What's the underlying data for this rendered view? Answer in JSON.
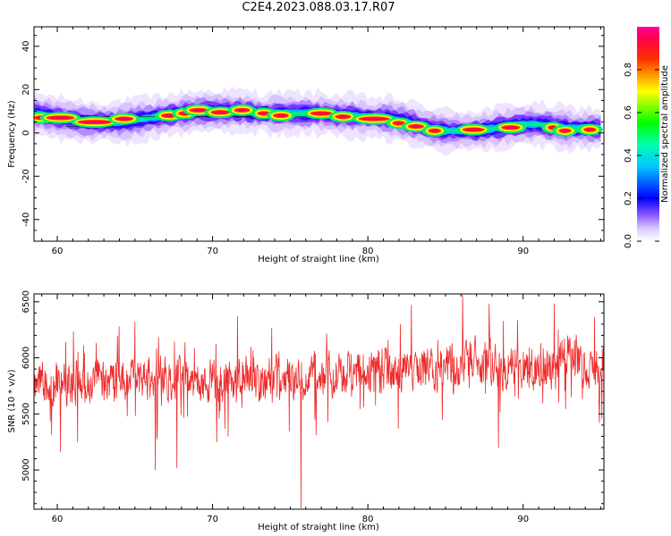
{
  "page": {
    "title": "C2E4.2023.088.03.17.R07"
  },
  "chart_data": [
    {
      "type": "heatmap",
      "title": "C2E4.2023.088.03.17.R07",
      "xlabel": "Height of straight line (km)",
      "ylabel": "Frequency (Hz)",
      "xlim": [
        58.5,
        95.2
      ],
      "ylim": [
        -50,
        49
      ],
      "x_ticks": [
        60,
        70,
        80,
        90
      ],
      "y_ticks": [
        -40,
        -20,
        0,
        20,
        40
      ],
      "grid": false,
      "colorbar": {
        "label": "Normalized spectral amplitude",
        "range": [
          0.0,
          1.0
        ],
        "ticks": [
          0.0,
          0.2,
          0.4,
          0.6,
          0.8
        ],
        "colormap": [
          "#ff00ff",
          "#ff0000",
          "#ffff00",
          "#00ff00",
          "#00ffff",
          "#0000ff",
          "#ffffff"
        ]
      },
      "ridge": {
        "x": [
          58.5,
          60,
          61,
          62,
          63,
          64,
          65,
          66,
          67,
          68,
          69,
          70,
          71,
          72,
          73,
          74,
          75,
          76,
          77,
          78,
          79,
          80,
          81,
          82,
          83,
          84,
          85,
          86,
          87,
          88,
          89,
          90,
          91,
          92,
          93,
          94,
          95
        ],
        "y": [
          9,
          7,
          6,
          5,
          5,
          5,
          6,
          7,
          8,
          9,
          10,
          10,
          10,
          10,
          9,
          9,
          9,
          9,
          9,
          8,
          8,
          7,
          7,
          6,
          4,
          2,
          1,
          1,
          1,
          2,
          3,
          4,
          4,
          3,
          2,
          2,
          2
        ]
      },
      "peaks": [
        {
          "x": 59.0,
          "y": 7,
          "w": 0.4
        },
        {
          "x": 60.2,
          "y": 7,
          "w": 0.8
        },
        {
          "x": 62.4,
          "y": 5,
          "w": 1.0
        },
        {
          "x": 64.3,
          "y": 6.5,
          "w": 0.5
        },
        {
          "x": 67.2,
          "y": 8,
          "w": 0.4
        },
        {
          "x": 68.2,
          "y": 9,
          "w": 0.3
        },
        {
          "x": 69.1,
          "y": 10.5,
          "w": 0.5
        },
        {
          "x": 70.5,
          "y": 9.5,
          "w": 0.5
        },
        {
          "x": 71.9,
          "y": 10.5,
          "w": 0.4
        },
        {
          "x": 73.3,
          "y": 9,
          "w": 0.3
        },
        {
          "x": 74.4,
          "y": 8,
          "w": 0.4
        },
        {
          "x": 77.0,
          "y": 9,
          "w": 0.6
        },
        {
          "x": 78.4,
          "y": 7.5,
          "w": 0.4
        },
        {
          "x": 80.4,
          "y": 6.5,
          "w": 0.9
        },
        {
          "x": 82.0,
          "y": 4.5,
          "w": 0.3
        },
        {
          "x": 83.1,
          "y": 3,
          "w": 0.4
        },
        {
          "x": 84.3,
          "y": 1,
          "w": 0.3
        },
        {
          "x": 86.8,
          "y": 1.5,
          "w": 0.6
        },
        {
          "x": 89.2,
          "y": 2.5,
          "w": 0.5
        },
        {
          "x": 91.9,
          "y": 2.5,
          "w": 0.2
        },
        {
          "x": 92.7,
          "y": 1,
          "w": 0.3
        },
        {
          "x": 94.3,
          "y": 1.5,
          "w": 0.3
        }
      ]
    },
    {
      "type": "line",
      "xlabel": "Height of straight line (km)",
      "ylabel": "SNR (10 * v/v)",
      "xlim": [
        58.5,
        95.2
      ],
      "ylim": [
        4650,
        6570
      ],
      "x_ticks": [
        60,
        70,
        80,
        90
      ],
      "y_ticks": [
        5000,
        5500,
        6000,
        6500
      ],
      "grid": false,
      "line_color": "#ee2b2b",
      "series": [
        {
          "x": [
            58.5,
            60,
            62,
            64,
            66,
            68,
            70,
            72,
            74,
            76,
            78,
            80,
            82,
            84,
            86,
            88,
            90,
            92,
            93,
            94,
            95.2
          ],
          "mean": [
            5780,
            5790,
            5790,
            5800,
            5830,
            5810,
            5780,
            5810,
            5830,
            5820,
            5860,
            5890,
            5900,
            5900,
            5980,
            5960,
            5880,
            5940,
            6060,
            5930,
            5960
          ],
          "spread": 260,
          "notable_minima": [
            {
              "x": 60.2,
              "y": 5160
            },
            {
              "x": 61.3,
              "y": 5250
            },
            {
              "x": 66.3,
              "y": 5000
            },
            {
              "x": 67.7,
              "y": 5020
            },
            {
              "x": 71.0,
              "y": 5300
            },
            {
              "x": 75.7,
              "y": 4660
            },
            {
              "x": 88.4,
              "y": 5200
            },
            {
              "x": 94.9,
              "y": 5420
            }
          ],
          "notable_maxima": [
            {
              "x": 65.0,
              "y": 6320
            },
            {
              "x": 71.6,
              "y": 6370
            },
            {
              "x": 82.8,
              "y": 6470
            },
            {
              "x": 86.1,
              "y": 6560
            },
            {
              "x": 87.8,
              "y": 6480
            },
            {
              "x": 92.0,
              "y": 6480
            },
            {
              "x": 94.6,
              "y": 6360
            }
          ]
        }
      ]
    }
  ]
}
